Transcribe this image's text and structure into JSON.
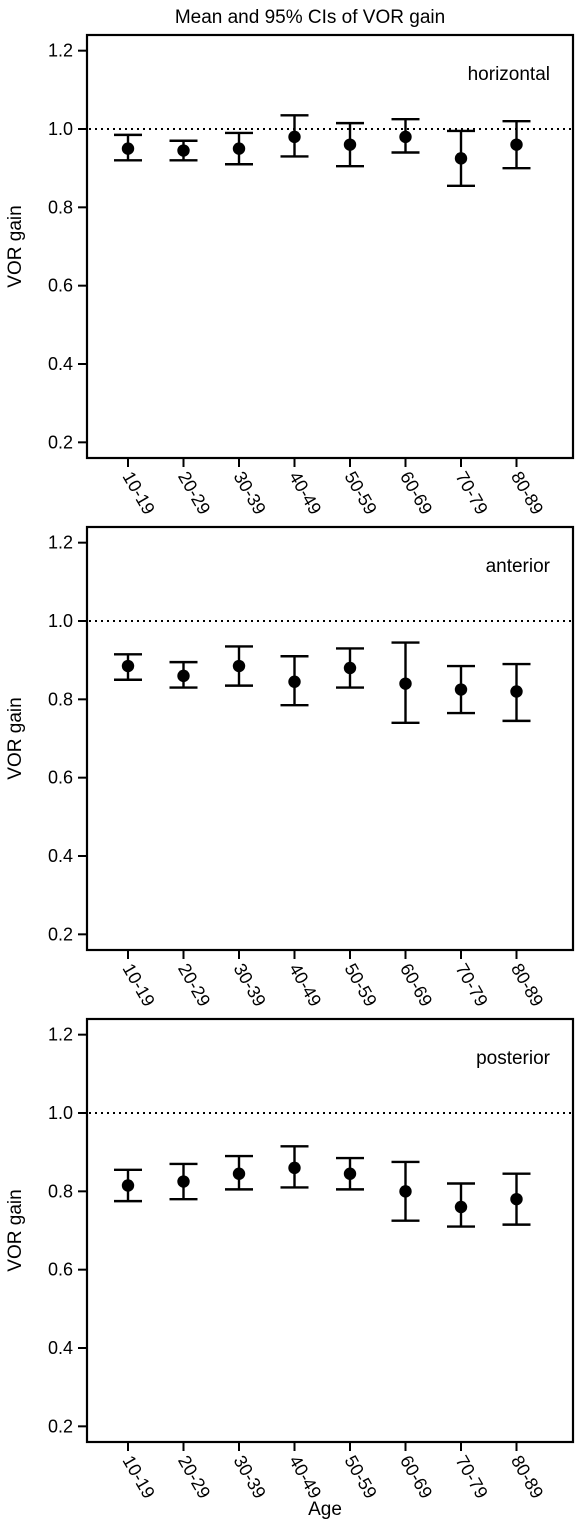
{
  "figure_title": "Mean and 95% CIs of VOR gain",
  "x_axis_title": "Age",
  "colors": {
    "ink": "#000000",
    "background": "#ffffff"
  },
  "chart_data": [
    {
      "type": "scatter",
      "error_bars": "95% CI",
      "panel_label": "horizontal",
      "title": "",
      "xlabel": "",
      "ylabel": "VOR gain",
      "ylim": [
        0.16,
        1.24
      ],
      "yticks": [
        0.2,
        0.4,
        0.6,
        0.8,
        1.0,
        1.2
      ],
      "ytick_labels": [
        "0.2",
        "0.4",
        "0.6",
        "0.8",
        "1.0",
        "1.2"
      ],
      "reference_line": 1.0,
      "categories": [
        "10-19",
        "20-29",
        "30-39",
        "40-49",
        "50-59",
        "60-69",
        "70-79",
        "80-89"
      ],
      "series": [
        {
          "mean": [
            0.95,
            0.945,
            0.95,
            0.98,
            0.96,
            0.98,
            0.925,
            0.96
          ],
          "lower": [
            0.92,
            0.92,
            0.91,
            0.93,
            0.905,
            0.94,
            0.855,
            0.9
          ],
          "upper": [
            0.985,
            0.97,
            0.99,
            1.035,
            1.015,
            1.025,
            0.995,
            1.02
          ]
        }
      ]
    },
    {
      "type": "scatter",
      "error_bars": "95% CI",
      "panel_label": "anterior",
      "title": "",
      "xlabel": "",
      "ylabel": "VOR gain",
      "ylim": [
        0.16,
        1.24
      ],
      "yticks": [
        0.2,
        0.4,
        0.6,
        0.8,
        1.0,
        1.2
      ],
      "ytick_labels": [
        "0.2",
        "0.4",
        "0.6",
        "0.8",
        "1.0",
        "1.2"
      ],
      "reference_line": 1.0,
      "categories": [
        "10-19",
        "20-29",
        "30-39",
        "40-49",
        "50-59",
        "60-69",
        "70-79",
        "80-89"
      ],
      "series": [
        {
          "mean": [
            0.885,
            0.86,
            0.885,
            0.845,
            0.88,
            0.84,
            0.825,
            0.82
          ],
          "lower": [
            0.85,
            0.83,
            0.835,
            0.785,
            0.83,
            0.74,
            0.765,
            0.745
          ],
          "upper": [
            0.915,
            0.895,
            0.935,
            0.91,
            0.93,
            0.945,
            0.885,
            0.89
          ]
        }
      ]
    },
    {
      "type": "scatter",
      "error_bars": "95% CI",
      "panel_label": "posterior",
      "title": "",
      "xlabel": "Age",
      "ylabel": "VOR gain",
      "ylim": [
        0.16,
        1.24
      ],
      "yticks": [
        0.2,
        0.4,
        0.6,
        0.8,
        1.0,
        1.2
      ],
      "ytick_labels": [
        "0.2",
        "0.4",
        "0.6",
        "0.8",
        "1.0",
        "1.2"
      ],
      "reference_line": 1.0,
      "categories": [
        "10-19",
        "20-29",
        "30-39",
        "40-49",
        "50-59",
        "60-69",
        "70-79",
        "80-89"
      ],
      "series": [
        {
          "mean": [
            0.815,
            0.825,
            0.845,
            0.86,
            0.845,
            0.8,
            0.76,
            0.78
          ],
          "lower": [
            0.775,
            0.78,
            0.805,
            0.81,
            0.805,
            0.725,
            0.71,
            0.715
          ],
          "upper": [
            0.855,
            0.87,
            0.89,
            0.915,
            0.885,
            0.875,
            0.82,
            0.845
          ]
        }
      ]
    }
  ]
}
